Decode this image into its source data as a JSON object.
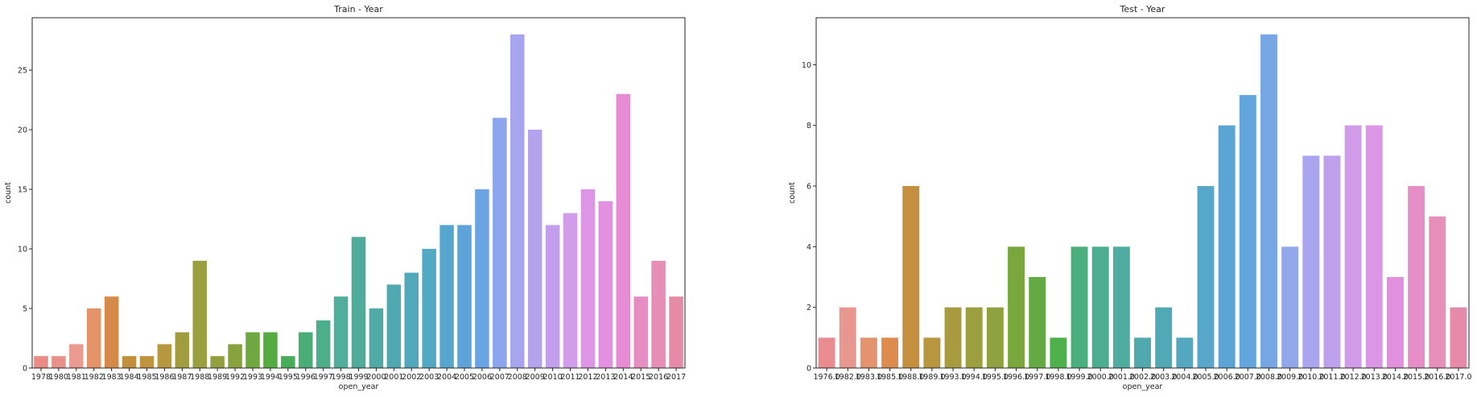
{
  "chart_data": [
    {
      "type": "bar",
      "title": "Train - Year",
      "xlabel": "open_year",
      "ylabel": "count",
      "ylim": [
        0,
        29.4
      ],
      "yticks": [
        0,
        5,
        10,
        15,
        20,
        25
      ],
      "grid": false,
      "categories": [
        "1978",
        "1980",
        "1981",
        "1982",
        "1983",
        "1984",
        "1985",
        "1986",
        "1987",
        "1988",
        "1989",
        "1992",
        "1993",
        "1994",
        "1995",
        "1996",
        "1997",
        "1998",
        "1999",
        "2000",
        "2001",
        "2002",
        "2003",
        "2004",
        "2005",
        "2006",
        "2007",
        "2008",
        "2009",
        "2010",
        "2011",
        "2012",
        "2013",
        "2014",
        "2015",
        "2016",
        "2017"
      ],
      "values": [
        1,
        1,
        2,
        5,
        6,
        1,
        1,
        2,
        3,
        9,
        1,
        2,
        3,
        3,
        1,
        3,
        4,
        6,
        11,
        5,
        7,
        8,
        10,
        12,
        12,
        15,
        21,
        28,
        20,
        12,
        13,
        15,
        14,
        23,
        6,
        9,
        6
      ],
      "colors": [
        "#e88c85",
        "#e8918a",
        "#ea9a8f",
        "#e49468",
        "#d58a49",
        "#c0903d",
        "#c0933f",
        "#b5983f",
        "#a09c3f",
        "#9aa03f",
        "#92a03f",
        "#88a33e",
        "#6ea83e",
        "#52ac40",
        "#48ad5a",
        "#4bad76",
        "#4dae8b",
        "#50ae9d",
        "#4fab9a",
        "#50aaa6",
        "#50a9b1",
        "#51a8bb",
        "#52a9c3",
        "#56a6cf",
        "#5ca3d9",
        "#6aa4e5",
        "#8ba6ec",
        "#a8a5ef",
        "#b2a3ec",
        "#c29eec",
        "#d19ce9",
        "#dd96e6",
        "#e291e0",
        "#e58cd4",
        "#e68ec3",
        "#e68eb5",
        "#e58aa7"
      ]
    },
    {
      "type": "bar",
      "title": "Test - Year",
      "xlabel": "open_year",
      "ylabel": "count",
      "ylim": [
        0,
        11.55
      ],
      "yticks": [
        0,
        2,
        4,
        6,
        8,
        10
      ],
      "grid": false,
      "categories": [
        "1976.0",
        "1982.0",
        "1983.0",
        "1985.0",
        "1988.0",
        "1989.0",
        "1993.0",
        "1994.0",
        "1995.0",
        "1996.0",
        "1997.0",
        "1998.0",
        "1999.0",
        "2000.0",
        "2001.0",
        "2002.0",
        "2003.0",
        "2004.0",
        "2005.0",
        "2006.0",
        "2007.0",
        "2008.0",
        "2009.0",
        "2010.0",
        "2011.0",
        "2012.0",
        "2013.0",
        "2014.0",
        "2015.0",
        "2016.0",
        "2017.0"
      ],
      "values": [
        1,
        2,
        1,
        1,
        6,
        1,
        2,
        2,
        2,
        4,
        3,
        1,
        4,
        4,
        4,
        1,
        2,
        1,
        6,
        8,
        9,
        11,
        4,
        7,
        7,
        8,
        8,
        3,
        6,
        5,
        2
      ],
      "colors": [
        "#e88c8f",
        "#e89690",
        "#e3946f",
        "#dd8c4e",
        "#c49040",
        "#b89640",
        "#a89a3f",
        "#9b9f3f",
        "#90a23f",
        "#7aa63e",
        "#63aa45",
        "#4db04a",
        "#4aae7d",
        "#4dad90",
        "#4faca1",
        "#50aaad",
        "#51a9b6",
        "#53a8c0",
        "#56a7ca",
        "#5aa5d4",
        "#63a5dd",
        "#77a6e4",
        "#92a6ea",
        "#a9a5ee",
        "#bfa0ec",
        "#d09be8",
        "#db96e5",
        "#e190dd",
        "#e68ec8",
        "#e68fb9",
        "#e68aa9"
      ]
    }
  ]
}
